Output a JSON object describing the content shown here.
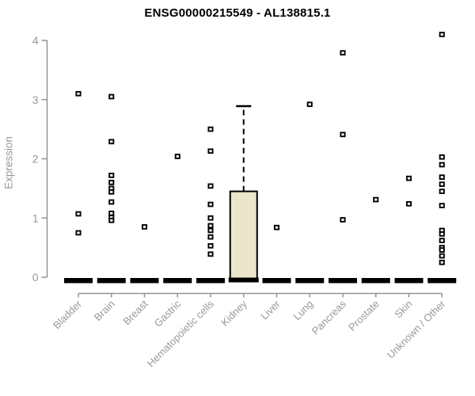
{
  "chart_data": {
    "type": "boxplot",
    "title": "ENSG00000215549 - AL138815.1",
    "ylabel": "Expression",
    "xlabel": "",
    "ylim": [
      0,
      4
    ],
    "yticks": [
      "0",
      "1",
      "2",
      "3",
      "4"
    ],
    "grid": false,
    "legend": "none",
    "marker_style": "open-black-square",
    "colors": {
      "box_fill": "#ebe5cc",
      "box_stroke": "#000000",
      "axis": "#949494",
      "tick_text": "#999999",
      "title_text": "#000000",
      "point": "#000000"
    },
    "categories": [
      "Bladder",
      "Brain",
      "Breast",
      "Gastric",
      "Hematopoietic cells",
      "Kidney",
      "Liver",
      "Lung",
      "Pancreas",
      "Prostate",
      "Skin",
      "Unknown / Other"
    ],
    "series": [
      {
        "label": "Bladder",
        "box": {
          "q1": 0,
          "median": 0,
          "q3": 0
        },
        "points": [
          3.1,
          1.07,
          0.75
        ]
      },
      {
        "label": "Brain",
        "box": {
          "q1": 0,
          "median": 0,
          "q3": 0
        },
        "points": [
          3.05,
          2.29,
          1.72,
          1.6,
          1.5,
          1.44,
          1.27,
          1.08,
          1.01,
          0.96
        ]
      },
      {
        "label": "Breast",
        "box": {
          "q1": 0,
          "median": 0,
          "q3": 0
        },
        "points": [
          0.85
        ]
      },
      {
        "label": "Gastric",
        "box": {
          "q1": 0,
          "median": 0,
          "q3": 0
        },
        "points": [
          2.04
        ]
      },
      {
        "label": "Hematopoietic cells",
        "box": {
          "q1": 0,
          "median": 0,
          "q3": 0
        },
        "points": [
          2.5,
          2.13,
          1.54,
          1.23,
          1.0,
          0.87,
          0.79,
          0.68,
          0.53,
          0.39
        ]
      },
      {
        "label": "Kidney",
        "box": {
          "q1": 0,
          "median": 0,
          "q3": 1.45,
          "whisker_high": 2.89
        },
        "points": []
      },
      {
        "label": "Liver",
        "box": {
          "q1": 0,
          "median": 0,
          "q3": 0
        },
        "points": [
          0.84
        ]
      },
      {
        "label": "Lung",
        "box": {
          "q1": 0,
          "median": 0,
          "q3": 0
        },
        "points": [
          2.92
        ]
      },
      {
        "label": "Pancreas",
        "box": {
          "q1": 0,
          "median": 0,
          "q3": 0
        },
        "points": [
          3.79,
          2.41,
          0.97
        ]
      },
      {
        "label": "Prostate",
        "box": {
          "q1": 0,
          "median": 0,
          "q3": 0
        },
        "points": [
          1.31
        ]
      },
      {
        "label": "Skin",
        "box": {
          "q1": 0,
          "median": 0,
          "q3": 0
        },
        "points": [
          1.67,
          1.24
        ]
      },
      {
        "label": "Unknown / Other",
        "box": {
          "q1": 0,
          "median": 0,
          "q3": 0
        },
        "points": [
          4.1,
          2.03,
          1.9,
          1.69,
          1.57,
          1.45,
          1.21,
          0.79,
          0.73,
          0.62,
          0.5,
          0.46,
          0.36,
          0.25
        ]
      }
    ]
  }
}
